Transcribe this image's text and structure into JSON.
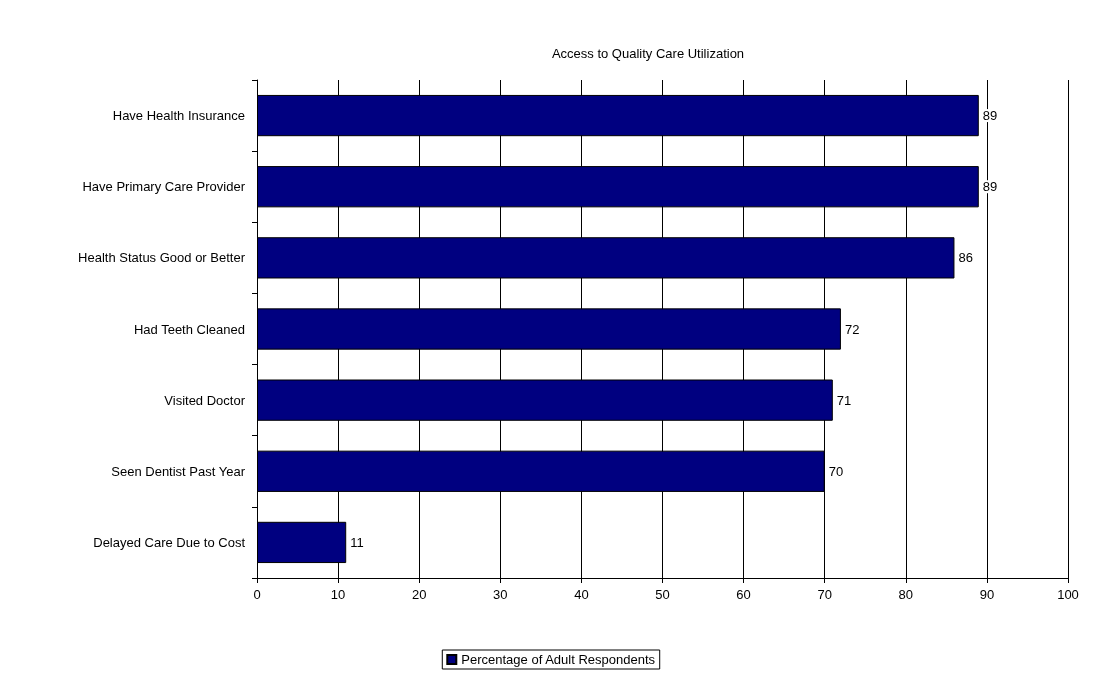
{
  "chart_data": {
    "type": "bar",
    "orientation": "horizontal",
    "title": "Access to Quality Care Utilization",
    "categories": [
      "Have Health Insurance",
      "Have Primary Care Provider",
      "Health Status Good or Better",
      "Had Teeth Cleaned",
      "Visited Doctor",
      "Seen Dentist Past Year",
      "Delayed Care Due to Cost"
    ],
    "series": [
      {
        "name": "Percentage of Adult Respondents",
        "color": "#000080",
        "values": [
          89,
          89,
          86,
          72,
          71,
          70,
          11
        ]
      }
    ],
    "xlim": [
      0,
      100
    ],
    "xticks": [
      0,
      10,
      20,
      30,
      40,
      50,
      60,
      70,
      80,
      90,
      100
    ],
    "grid": "x",
    "legend": "bottom",
    "data_labels": true
  }
}
